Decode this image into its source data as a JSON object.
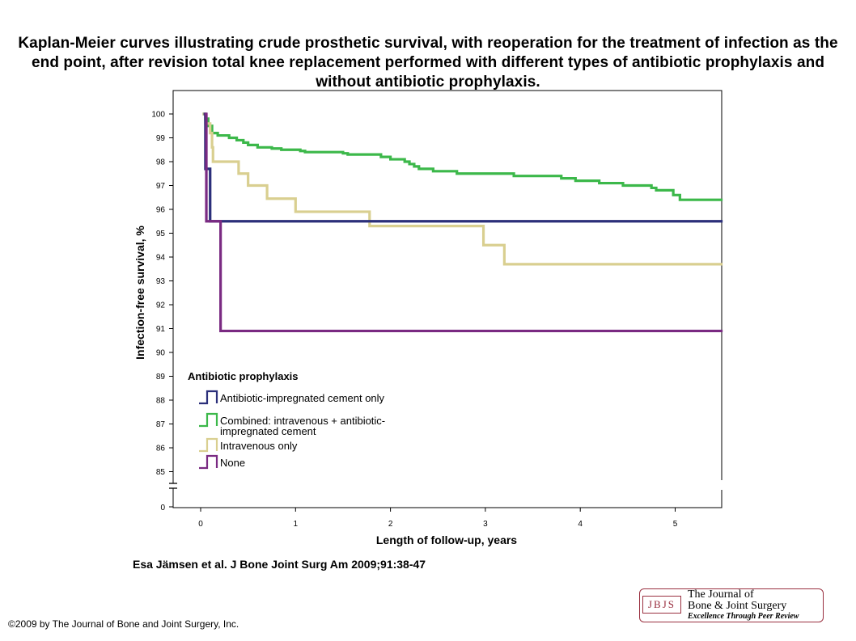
{
  "title": "Kaplan-Meier curves illustrating crude prosthetic survival, with reoperation for the treatment of infection as the end point, after revision total knee replacement performed with different types of antibiotic prophylaxis and without antibiotic prophylaxis.",
  "citation": "Esa Jämsen et al. J Bone Joint Surg Am 2009;91:38-47",
  "copyright": "©2009 by The Journal of Bone and Joint Surgery, Inc.",
  "logo": {
    "abbr": "JBJS",
    "line1": "The Journal of",
    "line2": "Bone & Joint Surgery",
    "line3": "Excellence Through Peer Review"
  },
  "colors": {
    "cement": "#2b2f7a",
    "combined": "#3cb84a",
    "iv": "#d9cf90",
    "none": "#7a2a82"
  },
  "chart_data": {
    "type": "line",
    "xlabel": "Length of follow-up, years",
    "ylabel": "Infection-free survival, %",
    "xlim": [
      -0.3,
      5.5
    ],
    "ylim": [
      84.3,
      100.3
    ],
    "broken_axis": true,
    "x_ticks": [
      0,
      1,
      2,
      3,
      4,
      5
    ],
    "y_ticks": [
      100,
      99,
      98,
      97,
      96,
      95,
      94,
      93,
      92,
      91,
      90,
      89,
      88,
      87,
      86,
      85
    ],
    "y_break_label": "0",
    "legend_title": "Antibiotic prophylaxis",
    "legend_position": "bottom-left",
    "series": [
      {
        "name": "Antibiotic-impregnated cement only",
        "color_key": "cement",
        "points": [
          [
            0.03,
            100
          ],
          [
            0.05,
            100
          ],
          [
            0.05,
            97.7
          ],
          [
            0.1,
            97.7
          ],
          [
            0.1,
            95.5
          ],
          [
            5.5,
            95.5
          ]
        ]
      },
      {
        "name": "Combined: intravenous + antibiotic-impregnated cement",
        "color_key": "combined",
        "points": [
          [
            0.02,
            100
          ],
          [
            0.05,
            99.8
          ],
          [
            0.08,
            99.5
          ],
          [
            0.12,
            99.2
          ],
          [
            0.18,
            99.1
          ],
          [
            0.3,
            99.0
          ],
          [
            0.38,
            98.9
          ],
          [
            0.45,
            98.8
          ],
          [
            0.5,
            98.7
          ],
          [
            0.6,
            98.6
          ],
          [
            0.75,
            98.55
          ],
          [
            0.85,
            98.5
          ],
          [
            1.05,
            98.45
          ],
          [
            1.1,
            98.4
          ],
          [
            1.5,
            98.35
          ],
          [
            1.55,
            98.3
          ],
          [
            1.9,
            98.2
          ],
          [
            2.0,
            98.1
          ],
          [
            2.15,
            98.0
          ],
          [
            2.2,
            97.9
          ],
          [
            2.25,
            97.8
          ],
          [
            2.3,
            97.7
          ],
          [
            2.45,
            97.6
          ],
          [
            2.7,
            97.5
          ],
          [
            3.3,
            97.4
          ],
          [
            3.8,
            97.3
          ],
          [
            3.95,
            97.2
          ],
          [
            4.2,
            97.1
          ],
          [
            4.45,
            97.0
          ],
          [
            4.75,
            96.9
          ],
          [
            4.8,
            96.8
          ],
          [
            4.98,
            96.6
          ],
          [
            5.05,
            96.4
          ],
          [
            5.5,
            96.4
          ]
        ]
      },
      {
        "name": "Intravenous only",
        "color_key": "iv",
        "points": [
          [
            0.02,
            100
          ],
          [
            0.05,
            99.6
          ],
          [
            0.1,
            99.2
          ],
          [
            0.12,
            98.6
          ],
          [
            0.13,
            98.0
          ],
          [
            0.4,
            98.0
          ],
          [
            0.4,
            97.5
          ],
          [
            0.5,
            97.5
          ],
          [
            0.5,
            97.0
          ],
          [
            0.7,
            97.0
          ],
          [
            0.7,
            96.45
          ],
          [
            1.0,
            96.45
          ],
          [
            1.0,
            95.9
          ],
          [
            1.78,
            95.9
          ],
          [
            1.78,
            95.3
          ],
          [
            2.98,
            95.3
          ],
          [
            2.98,
            94.5
          ],
          [
            3.2,
            94.5
          ],
          [
            3.2,
            93.7
          ],
          [
            5.5,
            93.7
          ]
        ]
      },
      {
        "name": "None",
        "color_key": "none",
        "points": [
          [
            0.04,
            100
          ],
          [
            0.06,
            100
          ],
          [
            0.06,
            95.5
          ],
          [
            0.21,
            95.5
          ],
          [
            0.21,
            90.9
          ],
          [
            5.5,
            90.9
          ]
        ]
      }
    ]
  }
}
